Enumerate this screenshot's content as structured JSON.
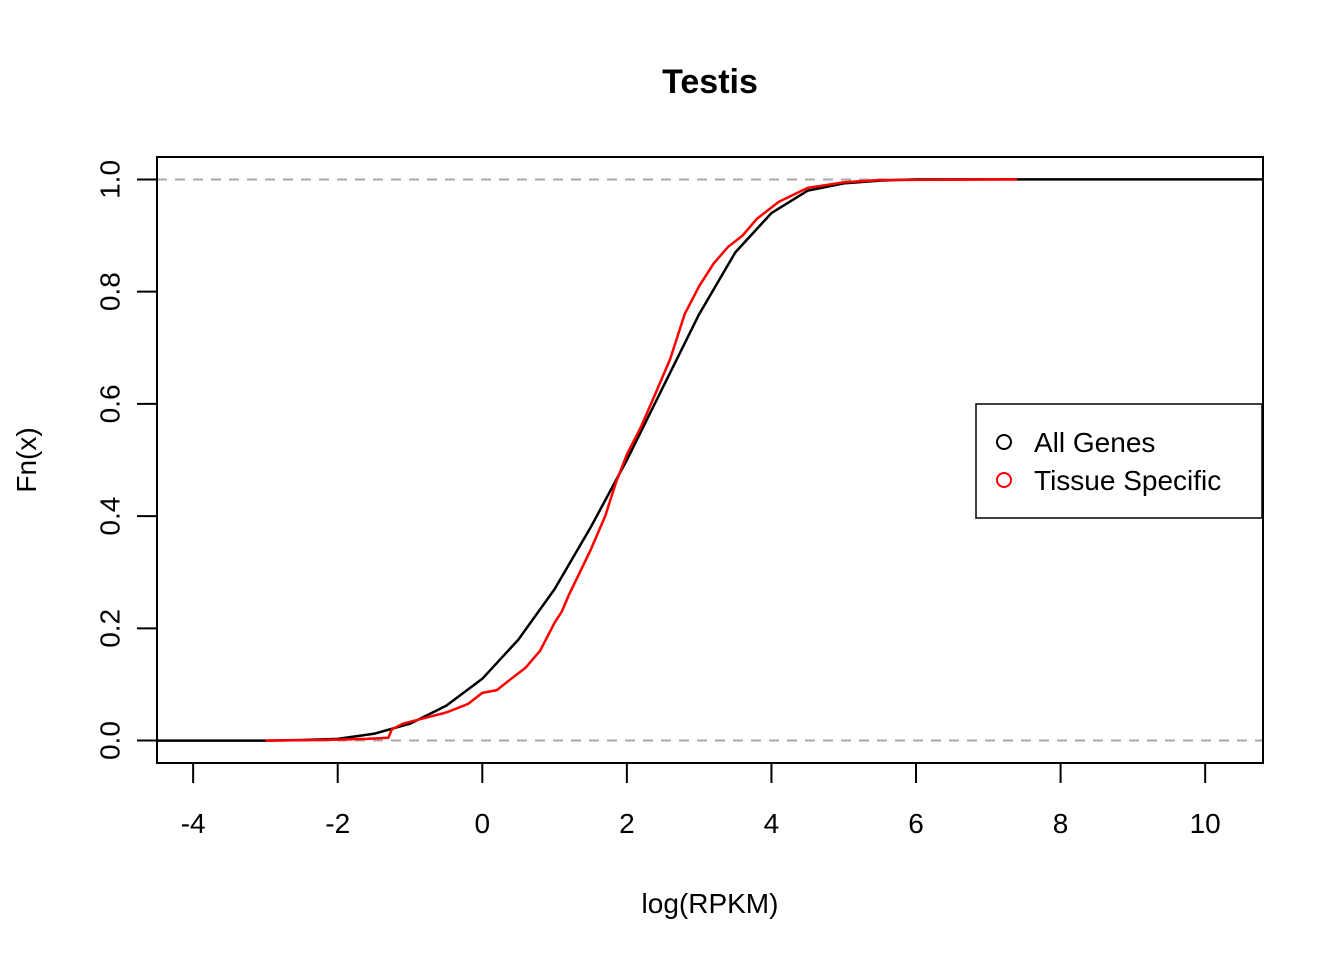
{
  "chart_data": {
    "type": "line",
    "title": "Testis",
    "xlabel": "log(RPKM)",
    "ylabel": "Fn(x)",
    "xlim": [
      -4.5,
      10.8
    ],
    "ylim": [
      -0.04,
      1.04
    ],
    "x_ticks": [
      -4,
      -2,
      0,
      2,
      4,
      6,
      8,
      10
    ],
    "x_tick_labels": [
      "-4",
      "-2",
      "0",
      "2",
      "4",
      "6",
      "8",
      "10"
    ],
    "y_ticks": [
      0.0,
      0.2,
      0.4,
      0.6,
      0.8,
      1.0
    ],
    "y_tick_labels": [
      "0.0",
      "0.2",
      "0.4",
      "0.6",
      "0.8",
      "1.0"
    ],
    "reference_lines": [
      0,
      1
    ],
    "grid": false,
    "legend": {
      "position": "right",
      "entries": [
        {
          "label": "All Genes",
          "color": "#000000"
        },
        {
          "label": "Tissue Specific",
          "color": "#ff0000"
        }
      ]
    },
    "series": [
      {
        "name": "All Genes",
        "color": "#000000",
        "points": [
          [
            -4.5,
            0.0
          ],
          [
            -3.0,
            0.0
          ],
          [
            -2.5,
            0.001
          ],
          [
            -2.0,
            0.003
          ],
          [
            -1.5,
            0.012
          ],
          [
            -1.0,
            0.03
          ],
          [
            -0.5,
            0.062
          ],
          [
            0.0,
            0.11
          ],
          [
            0.5,
            0.18
          ],
          [
            1.0,
            0.27
          ],
          [
            1.5,
            0.38
          ],
          [
            2.0,
            0.5
          ],
          [
            2.5,
            0.63
          ],
          [
            3.0,
            0.76
          ],
          [
            3.5,
            0.87
          ],
          [
            4.0,
            0.94
          ],
          [
            4.5,
            0.98
          ],
          [
            5.0,
            0.993
          ],
          [
            5.5,
            0.998
          ],
          [
            6.0,
            1.0
          ],
          [
            10.8,
            1.0
          ]
        ]
      },
      {
        "name": "Tissue Specific",
        "color": "#ff0000",
        "points": [
          [
            -3.0,
            0.0
          ],
          [
            -2.2,
            0.001
          ],
          [
            -1.6,
            0.003
          ],
          [
            -1.3,
            0.005
          ],
          [
            -1.25,
            0.02
          ],
          [
            -1.1,
            0.03
          ],
          [
            -0.8,
            0.04
          ],
          [
            -0.5,
            0.05
          ],
          [
            -0.2,
            0.065
          ],
          [
            0.0,
            0.085
          ],
          [
            0.2,
            0.09
          ],
          [
            0.4,
            0.11
          ],
          [
            0.6,
            0.13
          ],
          [
            0.8,
            0.16
          ],
          [
            1.0,
            0.21
          ],
          [
            1.1,
            0.23
          ],
          [
            1.2,
            0.26
          ],
          [
            1.35,
            0.3
          ],
          [
            1.5,
            0.34
          ],
          [
            1.7,
            0.4
          ],
          [
            1.85,
            0.46
          ],
          [
            2.0,
            0.51
          ],
          [
            2.2,
            0.56
          ],
          [
            2.4,
            0.62
          ],
          [
            2.6,
            0.68
          ],
          [
            2.8,
            0.76
          ],
          [
            3.0,
            0.81
          ],
          [
            3.2,
            0.85
          ],
          [
            3.4,
            0.88
          ],
          [
            3.6,
            0.9
          ],
          [
            3.8,
            0.93
          ],
          [
            4.1,
            0.96
          ],
          [
            4.5,
            0.985
          ],
          [
            5.0,
            0.995
          ],
          [
            5.5,
            0.999
          ],
          [
            7.4,
            1.0
          ]
        ]
      }
    ]
  }
}
